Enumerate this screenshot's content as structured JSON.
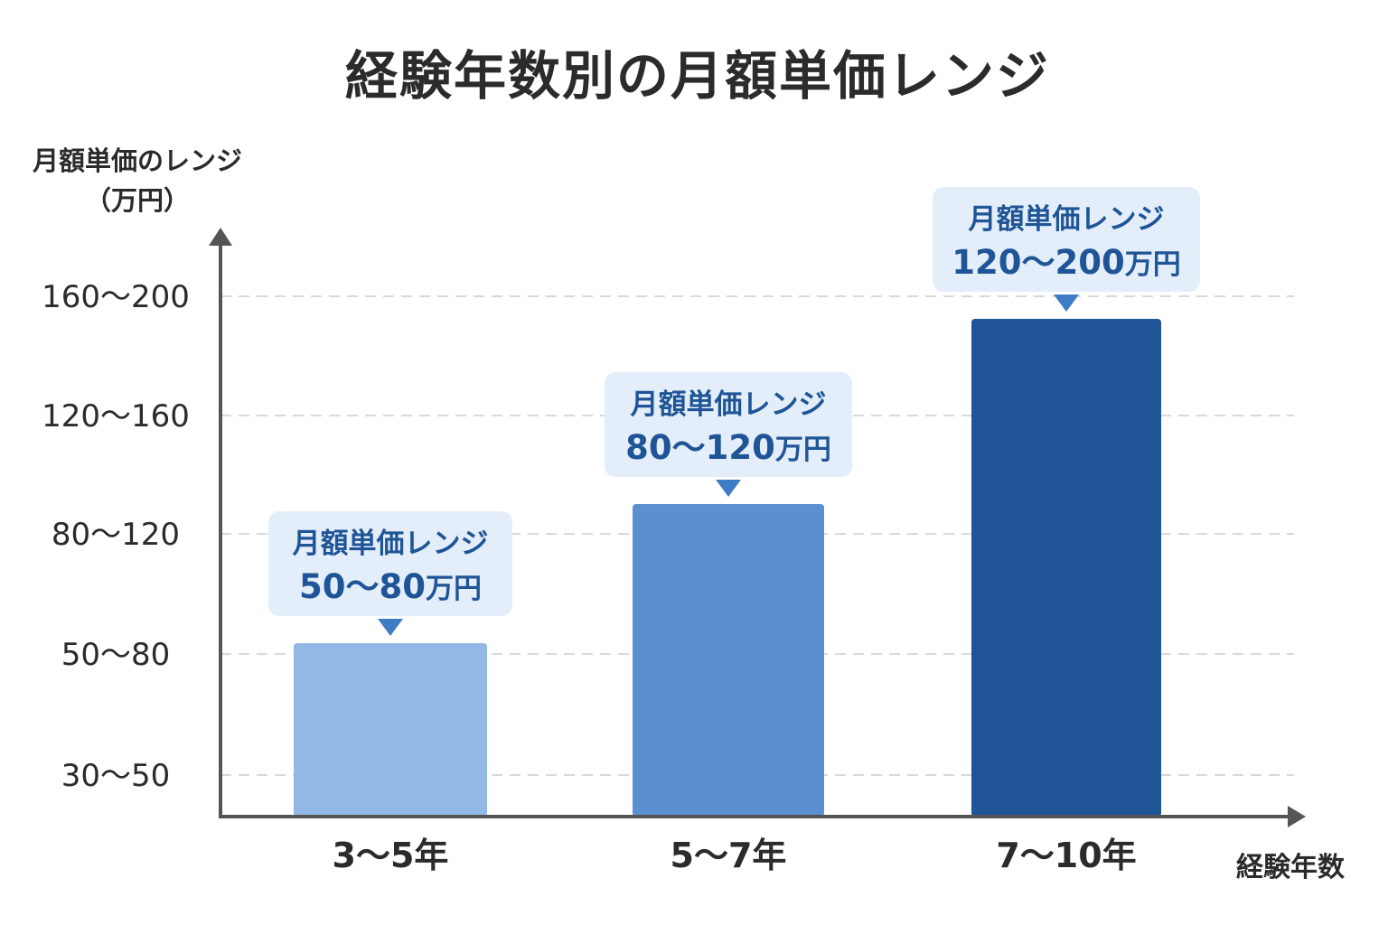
{
  "chart_data": {
    "type": "bar",
    "title": "経験年数別の月額単価レンジ",
    "ylabel": [
      "月額単価のレンジ",
      "（万円）"
    ],
    "xlabel": "経験年数",
    "y_tick_labels": [
      "30～50",
      "50～80",
      "80～120",
      "120～160",
      "160～200"
    ],
    "categories": [
      "3～5年",
      "5～7年",
      "7～10年"
    ],
    "values": [
      {
        "min": 50,
        "max": 80
      },
      {
        "min": 80,
        "max": 120
      },
      {
        "min": 120,
        "max": 200
      }
    ],
    "callouts": [
      {
        "line1": "月額単価レンジ",
        "range": "50～80",
        "unit": "万円"
      },
      {
        "line1": "月額単価レンジ",
        "range": "80～120",
        "unit": "万円"
      },
      {
        "line1": "月額単価レンジ",
        "range": "120～200",
        "unit": "万円"
      }
    ],
    "colors": [
      "#92b8e8",
      "#5b8fd0",
      "#1f5596"
    ],
    "grid": "horizontal-dashed",
    "callout_bg": "#e3eefa",
    "axis_color": "#555555"
  }
}
